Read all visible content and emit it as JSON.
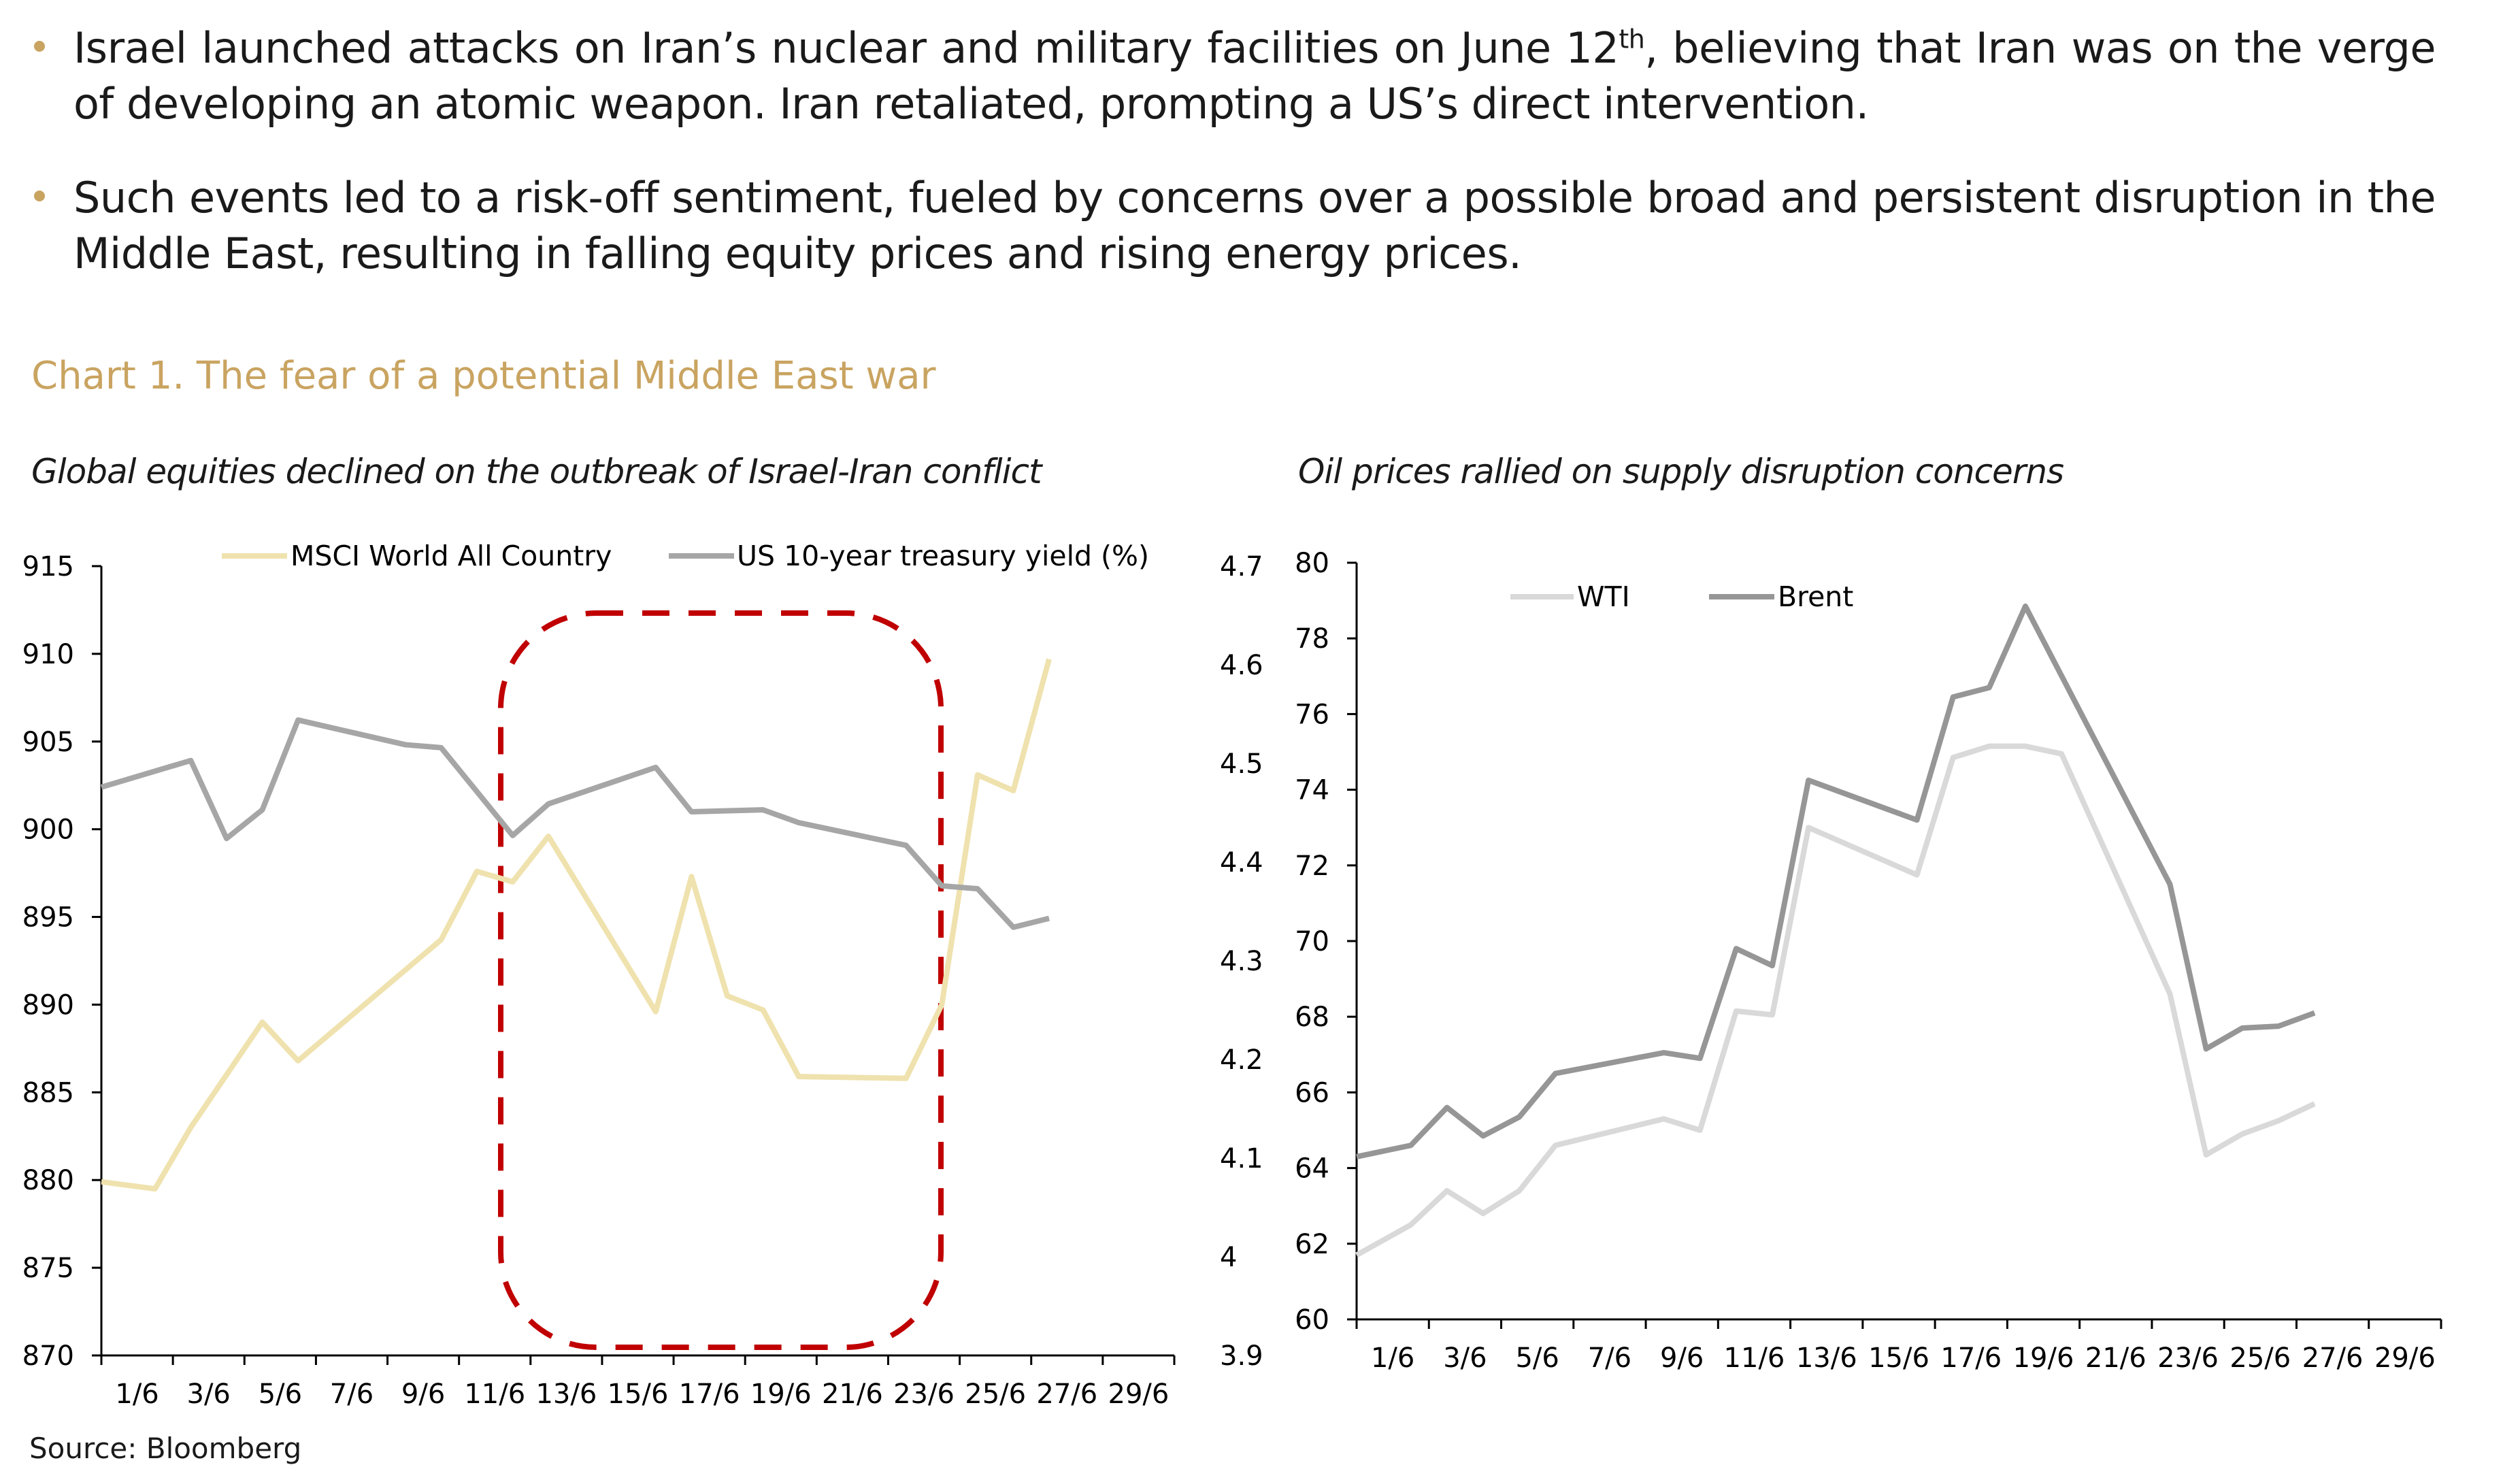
{
  "bullets": [
    {
      "pre": "Israel launched attacks on Iran’s nuclear and military facilities on June 12",
      "sup": "th",
      "post": ", believing that Iran was on the verge of developing an atomic weapon. Iran retaliated, prompting a US’s direct intervention."
    },
    {
      "pre": "Such events led to a risk-off sentiment, fueled by concerns over a possible broad and persistent disruption in the Middle East, resulting in falling equity prices and rising energy prices.",
      "sup": "",
      "post": ""
    }
  ],
  "title": "Chart 1. The fear of a potential Middle East war",
  "source": "Source: Bloomberg",
  "colors": {
    "accent": "#C9A461",
    "msci": "#EFE2AE",
    "treasury": "#A6A6A6",
    "wti": "#D9D9D9",
    "brent": "#969696",
    "highlight": "#C00000"
  },
  "chart_data": [
    {
      "type": "line",
      "title": "Global equities declined on the outbreak of Israel-Iran conflict",
      "xticks": [
        "1/6",
        "3/6",
        "5/6",
        "7/6",
        "9/6",
        "11/6",
        "13/6",
        "15/6",
        "17/6",
        "19/6",
        "21/6",
        "23/6",
        "25/6",
        "27/6",
        "29/6"
      ],
      "xlim": [
        0,
        30
      ],
      "ylim": [
        870,
        915
      ],
      "yticks": [
        "870",
        "875",
        "880",
        "885",
        "890",
        "895",
        "900",
        "905",
        "910",
        "915"
      ],
      "y2lim": [
        3.9,
        4.7
      ],
      "y2ticks": [
        "3.9",
        "4",
        "4.1",
        "4.2",
        "4.3",
        "4.4",
        "4.5",
        "4.6",
        "4.7"
      ],
      "legend": "top",
      "annotation": "dashed highlight box 12/6–24/6",
      "series": [
        {
          "name": "MSCI World All Country",
          "axis": "left",
          "x": [
            0.5,
            2,
            3,
            5,
            6,
            10,
            11,
            12,
            13,
            16,
            17,
            18,
            19,
            20,
            23,
            24,
            25,
            26,
            27
          ],
          "y": [
            879.9,
            879.5,
            883,
            889,
            886.8,
            893.7,
            897.6,
            897,
            899.6,
            889.6,
            897.3,
            890.5,
            889.7,
            885.9,
            885.8,
            890,
            903.1,
            902.2,
            909.7
          ]
        },
        {
          "name": "US 10-year treasury yield (%)",
          "axis": "right",
          "x": [
            0.5,
            3,
            4,
            5,
            6,
            9,
            10,
            12,
            13,
            16,
            17,
            19,
            20,
            23,
            24,
            25,
            26,
            27
          ],
          "y": [
            4.476,
            4.503,
            4.424,
            4.453,
            4.544,
            4.519,
            4.516,
            4.427,
            4.459,
            4.496,
            4.451,
            4.453,
            4.44,
            4.417,
            4.376,
            4.373,
            4.334,
            4.343
          ]
        }
      ]
    },
    {
      "type": "line",
      "title": "Oil prices rallied on supply disruption concerns",
      "xticks": [
        "1/6",
        "3/6",
        "5/6",
        "7/6",
        "9/6",
        "11/6",
        "13/6",
        "15/6",
        "17/6",
        "19/6",
        "21/6",
        "23/6",
        "25/6",
        "27/6",
        "29/6"
      ],
      "xlim": [
        0,
        30
      ],
      "ylim": [
        60,
        80
      ],
      "yticks": [
        "60",
        "62",
        "64",
        "66",
        "68",
        "70",
        "72",
        "74",
        "76",
        "78",
        "80"
      ],
      "legend": "top",
      "series": [
        {
          "name": "WTI",
          "x": [
            0.5,
            2,
            3,
            4,
            5,
            6,
            9,
            10,
            11,
            12,
            13,
            16,
            17,
            18,
            19,
            20,
            23,
            24,
            25,
            26,
            27
          ],
          "y": [
            61.7,
            62.5,
            63.4,
            62.8,
            63.4,
            64.6,
            65.3,
            65.0,
            68.15,
            68.05,
            73.0,
            71.75,
            74.85,
            75.15,
            75.15,
            74.95,
            68.6,
            64.35,
            64.9,
            65.25,
            65.7
          ]
        },
        {
          "name": "Brent",
          "x": [
            0.5,
            2,
            3,
            4,
            5,
            6,
            9,
            10,
            11,
            12,
            13,
            16,
            17,
            18,
            19,
            23,
            24,
            25,
            26,
            27
          ],
          "y": [
            64.3,
            64.6,
            65.6,
            64.85,
            65.35,
            66.5,
            67.05,
            66.9,
            69.8,
            69.35,
            74.25,
            73.2,
            76.45,
            76.7,
            78.85,
            71.5,
            67.15,
            67.7,
            67.75,
            68.1
          ]
        }
      ]
    }
  ]
}
